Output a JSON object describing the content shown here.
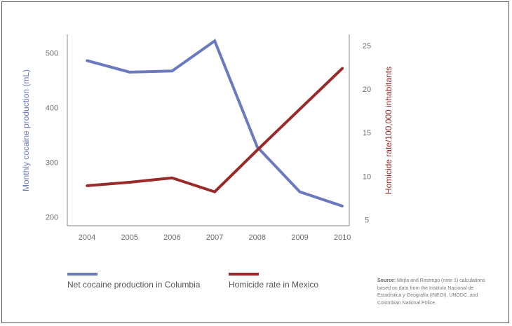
{
  "chart_data": {
    "type": "line",
    "x": [
      "2004",
      "2005",
      "2006",
      "2007",
      "2008",
      "2009",
      "2010"
    ],
    "series": [
      {
        "name": "Net cocaine production in Columbia",
        "axis": "left",
        "color": "#6b79be",
        "values": [
          486,
          465,
          467,
          522,
          328,
          246,
          220
        ]
      },
      {
        "name": "Homicide rate in Mexico",
        "axis": "right",
        "color": "#982a2a",
        "values": [
          8.9,
          9.3,
          9.8,
          8.2,
          13.0,
          17.7,
          22.4
        ]
      }
    ],
    "ylabel": "Monthly cocaine production (mL)",
    "ylabel_color": "#6b79be",
    "y2label": "Homicide rate/100,000 inhabitants",
    "y2label_color": "#982a2a",
    "yticks": [
      "200",
      "300",
      "400",
      "500"
    ],
    "ylim": [
      184,
      534
    ],
    "y2ticks": [
      "5",
      "10",
      "15",
      "20",
      "25"
    ],
    "y2lim": [
      4.3,
      26.3
    ],
    "grid": false,
    "legend_position": "bottom"
  },
  "source": {
    "label": "Source:",
    "text": "Mejía and Restrepo (note 1) calculations based on data from the Instituto Nacional de Estadística y Geografía (INEGI), UNODC, and Colombian National Police."
  }
}
